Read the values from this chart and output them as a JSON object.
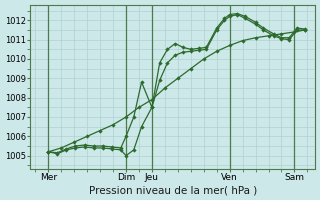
{
  "bg_color": "#cce8e8",
  "grid_color": "#aacccc",
  "line_color": "#2d6a2d",
  "title": "Pression niveau de la mer( hPa )",
  "ylabel_ticks": [
    1005,
    1006,
    1007,
    1008,
    1009,
    1010,
    1011,
    1012
  ],
  "ylim": [
    1004.3,
    1012.8
  ],
  "xlim": [
    -0.2,
    10.8
  ],
  "xtick_labels": [
    "Mer",
    "Dim",
    "Jeu",
    "Ven",
    "Sam"
  ],
  "xtick_pos": [
    0.5,
    3.5,
    4.5,
    7.5,
    10.0
  ],
  "vlines": [
    0.5,
    3.5,
    4.5,
    7.5,
    10.0
  ],
  "line1_x": [
    0.5,
    0.85,
    1.2,
    1.55,
    1.9,
    2.25,
    2.6,
    2.95,
    3.3,
    3.5,
    3.8,
    4.1,
    4.5,
    4.8,
    5.1,
    5.4,
    5.7,
    6.0,
    6.3,
    6.6,
    7.0,
    7.3,
    7.5,
    7.8,
    8.1,
    8.5,
    8.8,
    9.2,
    9.5,
    9.8,
    10.1,
    10.4
  ],
  "line1_y": [
    1005.2,
    1005.1,
    1005.3,
    1005.4,
    1005.45,
    1005.4,
    1005.4,
    1005.35,
    1005.3,
    1005.0,
    1005.3,
    1006.5,
    1007.5,
    1008.9,
    1009.8,
    1010.2,
    1010.35,
    1010.4,
    1010.45,
    1010.5,
    1011.5,
    1012.0,
    1012.2,
    1012.3,
    1012.1,
    1011.8,
    1011.5,
    1011.2,
    1011.05,
    1011.0,
    1011.5,
    1011.5
  ],
  "line2_x": [
    0.5,
    0.85,
    1.2,
    1.55,
    1.9,
    2.25,
    2.6,
    2.95,
    3.3,
    3.5,
    3.8,
    4.1,
    4.5,
    4.8,
    5.1,
    5.4,
    5.7,
    6.0,
    6.3,
    6.6,
    7.0,
    7.3,
    7.5,
    7.8,
    8.1,
    8.5,
    8.8,
    9.2,
    9.5,
    9.8,
    10.1,
    10.4
  ],
  "line2_y": [
    1005.2,
    1005.15,
    1005.35,
    1005.5,
    1005.55,
    1005.5,
    1005.5,
    1005.45,
    1005.4,
    1006.0,
    1007.0,
    1008.8,
    1007.5,
    1009.8,
    1010.5,
    1010.8,
    1010.6,
    1010.5,
    1010.55,
    1010.6,
    1011.6,
    1012.1,
    1012.3,
    1012.35,
    1012.2,
    1011.9,
    1011.6,
    1011.3,
    1011.1,
    1011.1,
    1011.6,
    1011.55
  ],
  "line3_x": [
    0.5,
    1.0,
    1.5,
    2.0,
    2.5,
    3.0,
    3.5,
    4.0,
    4.5,
    5.0,
    5.5,
    6.0,
    6.5,
    7.0,
    7.5,
    8.0,
    8.5,
    9.0,
    9.5,
    10.0,
    10.4
  ],
  "line3_y": [
    1005.2,
    1005.4,
    1005.7,
    1006.0,
    1006.3,
    1006.6,
    1007.0,
    1007.5,
    1007.9,
    1008.5,
    1009.0,
    1009.5,
    1010.0,
    1010.4,
    1010.7,
    1010.95,
    1011.1,
    1011.2,
    1011.3,
    1011.4,
    1011.5
  ]
}
